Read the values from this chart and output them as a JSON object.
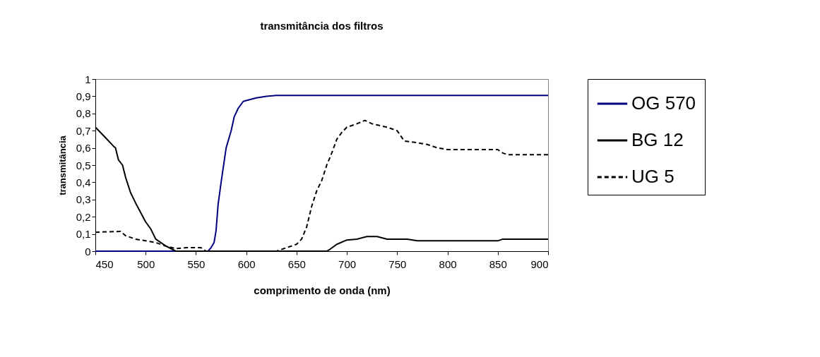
{
  "chart_data": {
    "type": "line",
    "title": "transmitância dos filtros",
    "xlabel": "comprimento de onda (nm)",
    "ylabel": "transmitância",
    "xlim": [
      450,
      900
    ],
    "xticks": [
      450,
      500,
      550,
      600,
      650,
      700,
      750,
      800,
      850,
      900
    ],
    "ylim": [
      0,
      1
    ],
    "yticks": [
      0,
      {
        "value": 0.1,
        "label": "0,1"
      },
      {
        "value": 0.2,
        "label": "0,2"
      },
      {
        "value": 0.3,
        "label": "0,3"
      },
      {
        "value": 0.4,
        "label": "0,4"
      },
      {
        "value": 0.5,
        "label": "0,5"
      },
      {
        "value": 0.6,
        "label": "0,6"
      },
      {
        "value": 0.7,
        "label": "0,7"
      },
      {
        "value": 0.8,
        "label": "0,8"
      },
      {
        "value": 0.9,
        "label": "0,9"
      },
      1
    ],
    "grid": false,
    "legend": "right",
    "marker": "none",
    "series": [
      {
        "name": "OG 570",
        "color": "#000080",
        "line_style": "solid",
        "x": [
          450,
          562,
          565,
          568,
          570,
          572,
          575,
          578,
          580,
          585,
          588,
          592,
          597,
          600,
          610,
          620,
          630,
          900
        ],
        "values": [
          0,
          0,
          0.02,
          0.05,
          0.12,
          0.27,
          0.4,
          0.52,
          0.6,
          0.7,
          0.78,
          0.83,
          0.87,
          0.875,
          0.89,
          0.9,
          0.905,
          0.905
        ]
      },
      {
        "name": "BG 12",
        "color": "#000000",
        "line_style": "solid",
        "x": [
          450,
          460,
          468,
          470,
          473,
          477,
          480,
          485,
          490,
          500,
          505,
          510,
          520,
          530,
          680,
          683,
          690,
          700,
          710,
          720,
          730,
          740,
          760,
          770,
          850,
          855,
          900
        ],
        "values": [
          0.72,
          0.66,
          0.61,
          0.6,
          0.53,
          0.5,
          0.43,
          0.34,
          0.28,
          0.17,
          0.13,
          0.07,
          0.03,
          0,
          0,
          0.01,
          0.04,
          0.065,
          0.07,
          0.085,
          0.085,
          0.07,
          0.07,
          0.06,
          0.06,
          0.07,
          0.07
        ]
      },
      {
        "name": "UG 5",
        "color": "#000000",
        "line_style": "dashed",
        "x": [
          450,
          475,
          480,
          490,
          500,
          510,
          520,
          530,
          540,
          555,
          560,
          630,
          640,
          650,
          655,
          660,
          665,
          670,
          675,
          680,
          685,
          690,
          695,
          700,
          710,
          718,
          725,
          740,
          750,
          757,
          770,
          780,
          790,
          800,
          850,
          855,
          860,
          900
        ],
        "values": [
          0.11,
          0.115,
          0.09,
          0.07,
          0.06,
          0.05,
          0.03,
          0.015,
          0.02,
          0.02,
          0,
          0,
          0.02,
          0.04,
          0.07,
          0.14,
          0.26,
          0.35,
          0.41,
          0.5,
          0.57,
          0.65,
          0.69,
          0.72,
          0.74,
          0.76,
          0.74,
          0.72,
          0.7,
          0.64,
          0.63,
          0.62,
          0.6,
          0.59,
          0.59,
          0.57,
          0.56,
          0.56
        ]
      }
    ]
  }
}
